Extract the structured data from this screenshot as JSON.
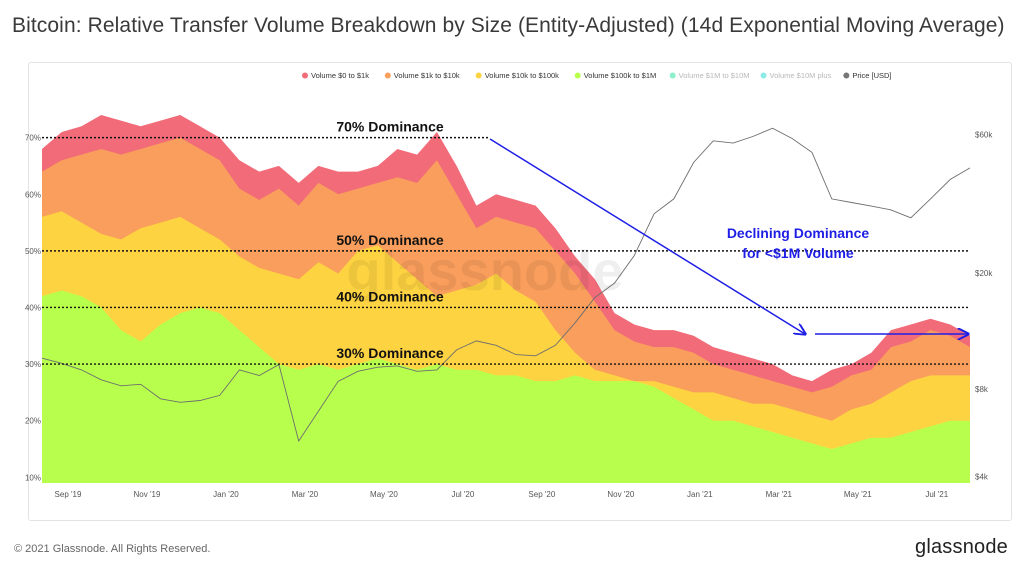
{
  "header": {
    "title": "Bitcoin: Relative Transfer Volume Breakdown by Size (Entity-Adjusted) (14d Exponential Moving Average)"
  },
  "footer": {
    "copyright": "© 2021 Glassnode. All Rights Reserved.",
    "brand": "glassnode"
  },
  "chart_data": {
    "type": "area",
    "stacked": true,
    "watermark": "glassnode",
    "legend": [
      {
        "label": "Volume $0 to $1k",
        "color": "#f26b79",
        "enabled": true
      },
      {
        "label": "Volume $1k to $10k",
        "color": "#f99e5c",
        "enabled": true
      },
      {
        "label": "Volume $10k to $100k",
        "color": "#fdd342",
        "enabled": true
      },
      {
        "label": "Volume $100k to $1M",
        "color": "#b8ff4d",
        "enabled": true
      },
      {
        "label": "Volume $1M to $10M",
        "color": "#2ee6a0",
        "enabled": false
      },
      {
        "label": "Volume $10M plus",
        "color": "#2edbd4",
        "enabled": false
      },
      {
        "label": "Price [USD]",
        "color": "#777777",
        "enabled": true
      }
    ],
    "x_ticks": [
      "Sep '19",
      "Nov '19",
      "Jan '20",
      "Mar '20",
      "May '20",
      "Jul '20",
      "Sep '20",
      "Nov '20",
      "Jan '21",
      "Mar '21",
      "May '21",
      "Jul '21"
    ],
    "y_left": {
      "ticks": [
        "10%",
        "20%",
        "30%",
        "40%",
        "50%",
        "60%",
        "70%"
      ],
      "values": [
        10,
        20,
        30,
        40,
        50,
        60,
        70
      ],
      "range": [
        9,
        77
      ]
    },
    "y_right": {
      "ticks": [
        "$4k",
        "$8k",
        "$20k",
        "$60k"
      ],
      "values": [
        4000,
        8000,
        20000,
        60000
      ],
      "scale": "log",
      "range": [
        3800,
        80000
      ]
    },
    "x": [
      0,
      0.5,
      1,
      1.5,
      2,
      2.5,
      3,
      3.5,
      4,
      4.5,
      5,
      5.5,
      6,
      6.5,
      7,
      7.5,
      8,
      8.5,
      9,
      9.5,
      10,
      10.5,
      11,
      11.5,
      12,
      12.5,
      13,
      13.5,
      14,
      14.5,
      15,
      15.5,
      16,
      16.5,
      17,
      17.5,
      18,
      18.5,
      19,
      19.5,
      20,
      20.5,
      21,
      21.5,
      22,
      22.5,
      23,
      23.5
    ],
    "series": [
      {
        "name": "Volume $100k to $1M",
        "cumulative": [
          42,
          43,
          42,
          40,
          36,
          34,
          37,
          39,
          40,
          39,
          36,
          33,
          30,
          29,
          30,
          29,
          30,
          31,
          30,
          29,
          30,
          29,
          29,
          28,
          28,
          27,
          27,
          28,
          27,
          27,
          27,
          26,
          24,
          22,
          20,
          20,
          19,
          18,
          17,
          16,
          15,
          16,
          17,
          17,
          18,
          19,
          20,
          20
        ]
      },
      {
        "name": "Volume $10k to $100k",
        "cumulative": [
          56,
          57,
          55,
          53,
          52,
          54,
          55,
          56,
          54,
          52,
          49,
          47,
          46,
          45,
          48,
          46,
          50,
          51,
          48,
          45,
          42,
          43,
          44,
          46,
          43,
          41,
          36,
          32,
          29,
          28,
          27,
          27,
          26,
          25,
          25,
          24,
          23,
          23,
          22,
          21,
          20,
          22,
          23,
          25,
          27,
          28,
          28,
          28
        ]
      },
      {
        "name": "Volume $1k to $10k",
        "cumulative": [
          64,
          66,
          67,
          68,
          67,
          68,
          69,
          70,
          68,
          66,
          61,
          59,
          61,
          58,
          62,
          60,
          61,
          62,
          63,
          62,
          66,
          60,
          54,
          56,
          55,
          54,
          50,
          46,
          41,
          36,
          34,
          33,
          33,
          32,
          30,
          29,
          28,
          27,
          26,
          25,
          26,
          28,
          29,
          33,
          34,
          36,
          35,
          33
        ]
      },
      {
        "name": "Volume $0 to $1k",
        "cumulative": [
          68,
          71,
          72,
          74,
          73,
          72,
          73,
          74,
          72,
          70,
          66,
          64,
          65,
          62,
          65,
          64,
          64,
          65,
          68,
          67,
          71,
          65,
          58,
          60,
          59,
          58,
          54,
          49,
          45,
          39,
          37,
          36,
          36,
          35,
          33,
          32,
          31,
          30,
          28,
          27,
          29,
          30,
          32,
          36,
          37,
          38,
          37,
          35
        ]
      }
    ],
    "price": [
      10200,
      9800,
      9300,
      8600,
      8200,
      8300,
      7400,
      7200,
      7300,
      7600,
      9300,
      8900,
      9700,
      5300,
      6700,
      8500,
      9200,
      9500,
      9600,
      9200,
      9300,
      10900,
      11700,
      11300,
      10500,
      10400,
      11300,
      13500,
      16500,
      18500,
      23000,
      32000,
      36000,
      48000,
      57000,
      56000,
      59000,
      63000,
      58000,
      52000,
      36000,
      35000,
      34000,
      33000,
      31000,
      36000,
      42000,
      46000
    ],
    "reference_lines": [
      {
        "label": "70% Dominance",
        "value": 70
      },
      {
        "label": "50% Dominance",
        "value": 50
      },
      {
        "label": "40% Dominance",
        "value": 40
      },
      {
        "label": "30% Dominance",
        "value": 30
      }
    ],
    "annotation": {
      "line1": "Declining Dominance",
      "line2": "for <$1M Volume"
    }
  }
}
